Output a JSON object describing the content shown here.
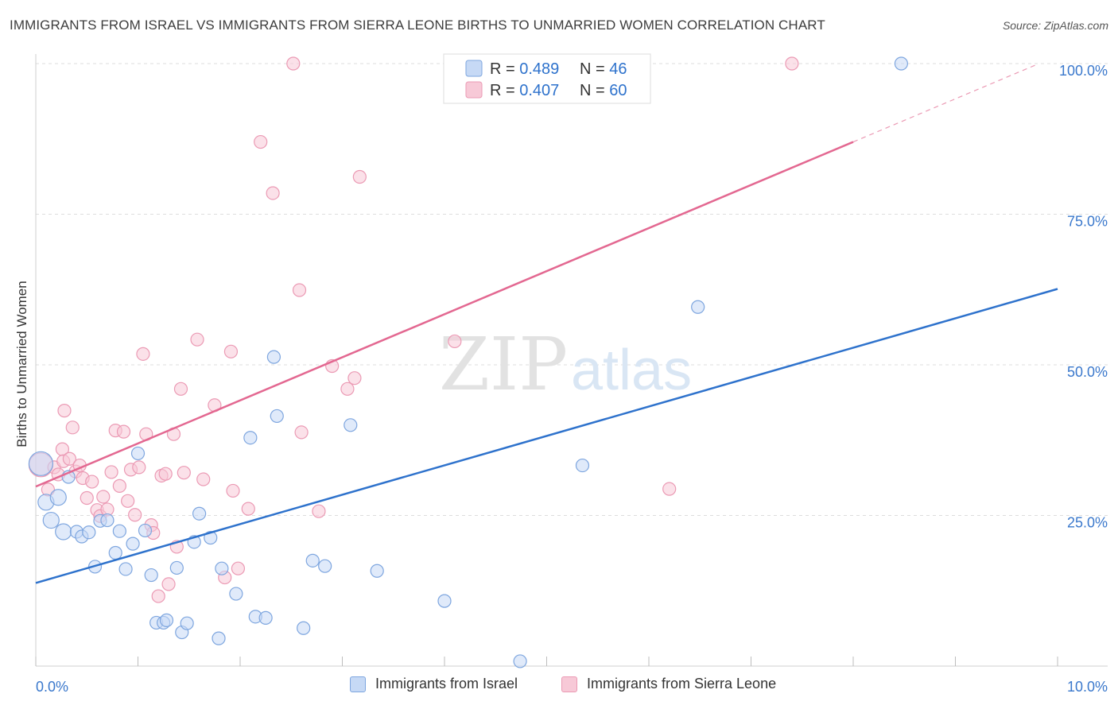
{
  "header": {
    "title": "IMMIGRANTS FROM ISRAEL VS IMMIGRANTS FROM SIERRA LEONE BIRTHS TO UNMARRIED WOMEN CORRELATION CHART",
    "source": "Source: ZipAtlas.com"
  },
  "watermark": {
    "zip": "ZIP",
    "atlas": "atlas"
  },
  "legend_top": [
    {
      "r_label": "R = ",
      "r_value": "0.489",
      "n_label": "N = ",
      "n_value": "46"
    },
    {
      "r_label": "R = ",
      "r_value": "0.407",
      "n_label": "N = ",
      "n_value": "60"
    }
  ],
  "colors": {
    "blue": "#2e72cc",
    "blue_fill": "#c6d9f5",
    "blue_stroke": "#7ea6df",
    "pink": "#e36891",
    "pink_fill": "#f7c9d7",
    "pink_stroke": "#eb9ab4",
    "tick_blue": "#3a78cc",
    "grid": "#dddddd"
  },
  "chart_data": {
    "type": "scatter",
    "title": "IMMIGRANTS FROM ISRAEL VS IMMIGRANTS FROM SIERRA LEONE BIRTHS TO UNMARRIED WOMEN CORRELATION CHART",
    "xlabel": "",
    "ylabel": "Births to Unmarried Women",
    "xlim": [
      0,
      10
    ],
    "ylim": [
      0,
      102
    ],
    "x_tick_labels": [
      "0.0%",
      "10.0%"
    ],
    "y_ticks": [
      25,
      50,
      75,
      100
    ],
    "y_tick_labels": [
      "25.0%",
      "50.0%",
      "75.0%",
      "100.0%"
    ],
    "grid": true,
    "legend_position": "top-center and bottom",
    "series": [
      {
        "name": "Immigrants from Israel",
        "color": "#2e72cc",
        "r": 0.489,
        "n": 46,
        "trend": {
          "x": [
            0,
            10
          ],
          "y": [
            13.8,
            62.6
          ]
        },
        "points": [
          [
            0.05,
            33.6,
            "lg"
          ],
          [
            0.1,
            27.2,
            "md"
          ],
          [
            0.15,
            24.2,
            "md"
          ],
          [
            0.22,
            28.0,
            "md"
          ],
          [
            0.27,
            22.3,
            "md"
          ],
          [
            0.32,
            31.4,
            "sm"
          ],
          [
            0.4,
            22.3,
            "sm"
          ],
          [
            0.45,
            21.5,
            "sm"
          ],
          [
            0.52,
            22.2,
            "sm"
          ],
          [
            0.58,
            16.5,
            "sm"
          ],
          [
            0.63,
            24.1,
            "sm"
          ],
          [
            0.7,
            24.2,
            "sm"
          ],
          [
            0.78,
            18.8,
            "sm"
          ],
          [
            0.82,
            22.4,
            "sm"
          ],
          [
            0.88,
            16.1,
            "sm"
          ],
          [
            0.95,
            20.3,
            "sm"
          ],
          [
            1.0,
            35.3,
            "sm"
          ],
          [
            1.07,
            22.5,
            "sm"
          ],
          [
            1.13,
            15.1,
            "sm"
          ],
          [
            1.18,
            7.2,
            "sm"
          ],
          [
            1.25,
            7.2,
            "sm"
          ],
          [
            1.28,
            7.6,
            "sm"
          ],
          [
            1.38,
            16.3,
            "sm"
          ],
          [
            1.43,
            5.6,
            "sm"
          ],
          [
            1.48,
            7.1,
            "sm"
          ],
          [
            1.55,
            20.6,
            "sm"
          ],
          [
            1.6,
            25.3,
            "sm"
          ],
          [
            1.71,
            21.3,
            "sm"
          ],
          [
            1.79,
            4.6,
            "sm"
          ],
          [
            1.82,
            16.2,
            "sm"
          ],
          [
            1.96,
            12.0,
            "sm"
          ],
          [
            2.1,
            37.9,
            "sm"
          ],
          [
            2.15,
            8.2,
            "sm"
          ],
          [
            2.25,
            8.0,
            "sm"
          ],
          [
            2.33,
            51.3,
            "sm"
          ],
          [
            2.36,
            41.5,
            "sm"
          ],
          [
            2.62,
            6.3,
            "sm"
          ],
          [
            2.71,
            17.5,
            "sm"
          ],
          [
            2.83,
            16.6,
            "sm"
          ],
          [
            3.08,
            40.0,
            "sm"
          ],
          [
            3.34,
            15.8,
            "sm"
          ],
          [
            4.0,
            10.8,
            "sm"
          ],
          [
            4.74,
            0.8,
            "sm"
          ],
          [
            5.35,
            33.3,
            "sm"
          ],
          [
            6.48,
            59.6,
            "sm"
          ],
          [
            8.47,
            100.0,
            "sm"
          ]
        ]
      },
      {
        "name": "Immigrants from Sierra Leone",
        "color": "#e36891",
        "r": 0.407,
        "n": 60,
        "trend": {
          "x": [
            0,
            8.0
          ],
          "y": [
            29.8,
            87.0
          ]
        },
        "points": [
          [
            0.05,
            33.4,
            "lg"
          ],
          [
            0.12,
            29.3,
            "sm"
          ],
          [
            0.18,
            33.0,
            "sm"
          ],
          [
            0.22,
            31.8,
            "sm"
          ],
          [
            0.26,
            36.0,
            "sm"
          ],
          [
            0.27,
            34.0,
            "sm"
          ],
          [
            0.28,
            42.4,
            "sm"
          ],
          [
            0.33,
            34.4,
            "sm"
          ],
          [
            0.36,
            39.6,
            "sm"
          ],
          [
            0.39,
            32.3,
            "sm"
          ],
          [
            0.43,
            33.3,
            "sm"
          ],
          [
            0.46,
            31.2,
            "sm"
          ],
          [
            0.5,
            27.9,
            "sm"
          ],
          [
            0.55,
            30.6,
            "sm"
          ],
          [
            0.6,
            25.9,
            "sm"
          ],
          [
            0.63,
            24.9,
            "sm"
          ],
          [
            0.66,
            28.1,
            "sm"
          ],
          [
            0.7,
            26.0,
            "sm"
          ],
          [
            0.74,
            32.2,
            "sm"
          ],
          [
            0.78,
            39.1,
            "sm"
          ],
          [
            0.82,
            29.9,
            "sm"
          ],
          [
            0.86,
            38.9,
            "sm"
          ],
          [
            0.9,
            27.4,
            "sm"
          ],
          [
            0.93,
            32.6,
            "sm"
          ],
          [
            0.97,
            25.1,
            "sm"
          ],
          [
            1.01,
            33.0,
            "sm"
          ],
          [
            1.05,
            51.8,
            "sm"
          ],
          [
            1.08,
            38.5,
            "sm"
          ],
          [
            1.13,
            23.4,
            "sm"
          ],
          [
            1.15,
            22.1,
            "sm"
          ],
          [
            1.2,
            11.6,
            "sm"
          ],
          [
            1.23,
            31.6,
            "sm"
          ],
          [
            1.27,
            31.9,
            "sm"
          ],
          [
            1.3,
            13.6,
            "sm"
          ],
          [
            1.35,
            38.5,
            "sm"
          ],
          [
            1.38,
            19.8,
            "sm"
          ],
          [
            1.42,
            46.0,
            "sm"
          ],
          [
            1.45,
            32.1,
            "sm"
          ],
          [
            1.58,
            54.2,
            "sm"
          ],
          [
            1.64,
            31.0,
            "sm"
          ],
          [
            1.75,
            43.3,
            "sm"
          ],
          [
            1.85,
            14.7,
            "sm"
          ],
          [
            1.91,
            52.2,
            "sm"
          ],
          [
            1.93,
            29.1,
            "sm"
          ],
          [
            1.98,
            16.2,
            "sm"
          ],
          [
            2.08,
            26.1,
            "sm"
          ],
          [
            2.2,
            87.0,
            "sm"
          ],
          [
            2.32,
            78.5,
            "sm"
          ],
          [
            2.52,
            100.0,
            "sm"
          ],
          [
            2.58,
            62.4,
            "sm"
          ],
          [
            2.6,
            38.8,
            "sm"
          ],
          [
            2.77,
            25.7,
            "sm"
          ],
          [
            2.9,
            49.8,
            "sm"
          ],
          [
            3.05,
            46.0,
            "sm"
          ],
          [
            3.12,
            47.8,
            "sm"
          ],
          [
            3.17,
            81.2,
            "sm"
          ],
          [
            4.1,
            53.9,
            "sm"
          ],
          [
            4.77,
            100.0,
            "sm"
          ],
          [
            6.2,
            29.4,
            "sm"
          ],
          [
            7.4,
            100.0,
            "sm"
          ]
        ]
      }
    ]
  }
}
